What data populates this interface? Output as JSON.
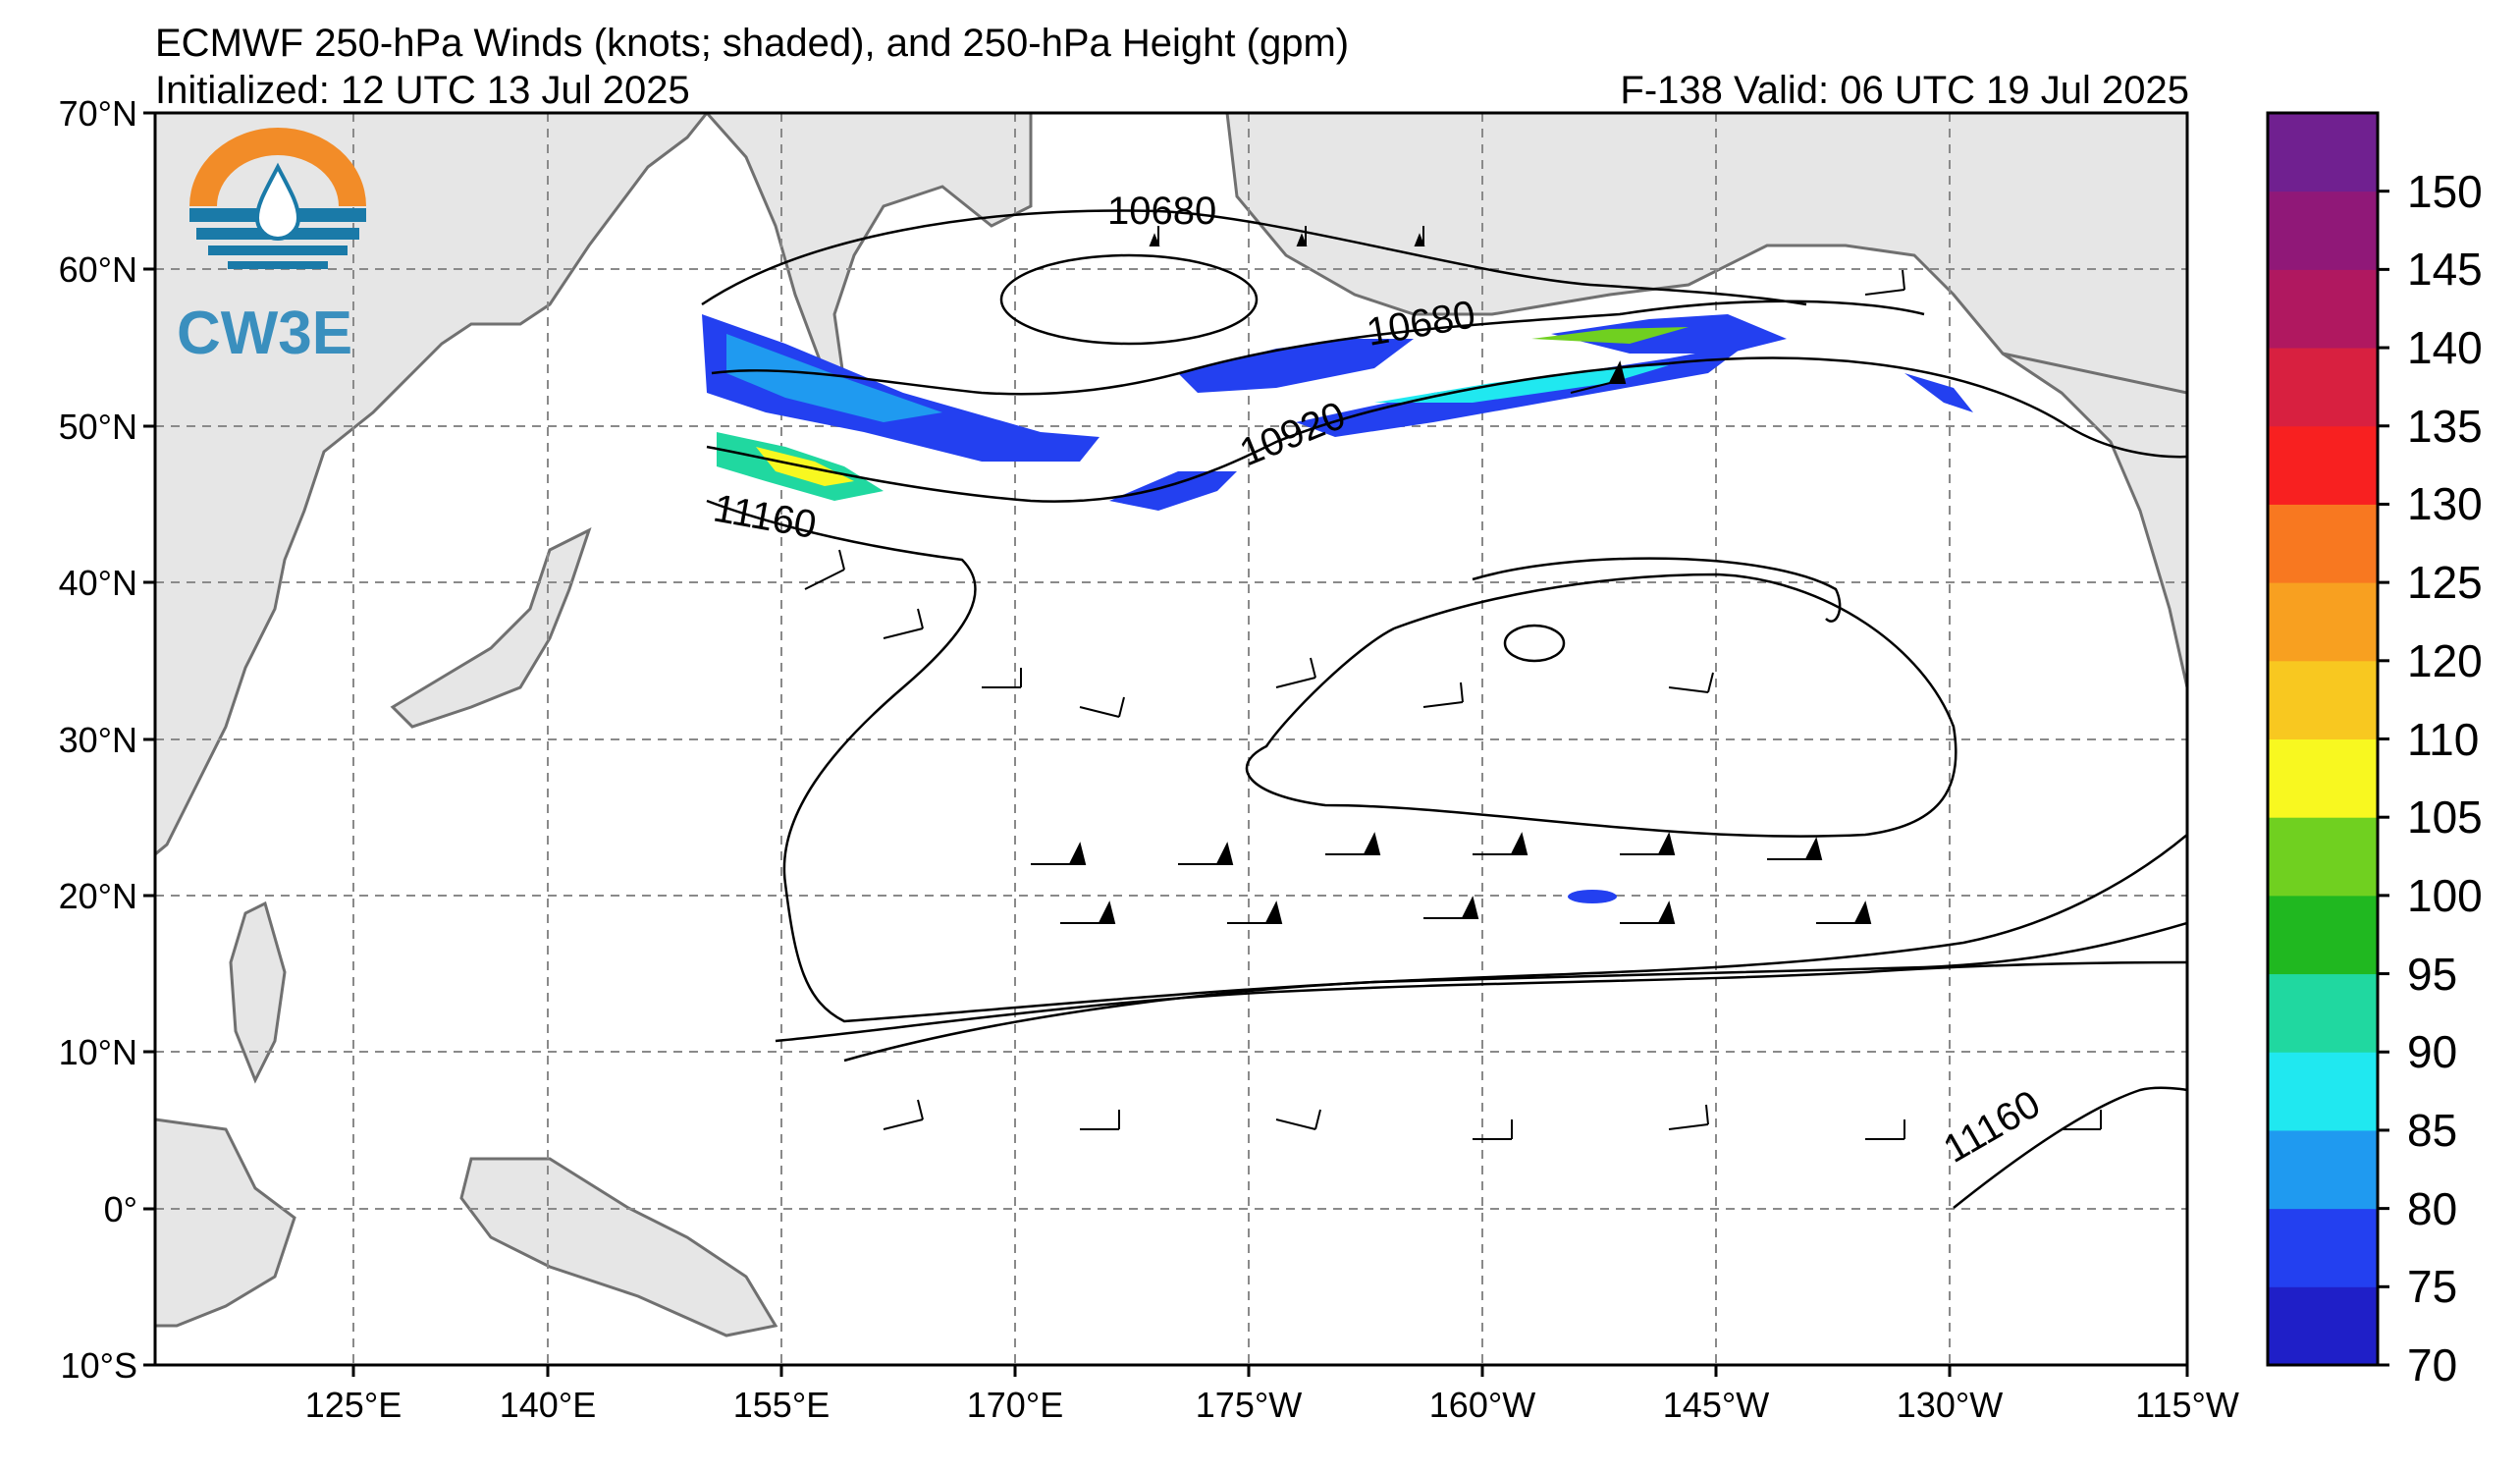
{
  "titles": {
    "line1": "ECMWF 250-hPa Winds (knots; shaded), and 250-hPa Height (gpm)",
    "initialized": "Initialized: 12 UTC 13 Jul 2025",
    "valid": "F-138  Valid: 06 UTC 19 Jul 2025"
  },
  "logo": {
    "text": "CW3E",
    "colors": {
      "sun": "#f28c28",
      "water": "#1a7aa8",
      "text": "#3a8fbe"
    }
  },
  "map": {
    "lon_range": [
      112,
      245
    ],
    "lat_range": [
      -10,
      70
    ],
    "lat_ticks": [
      "70°N",
      "60°N",
      "50°N",
      "40°N",
      "30°N",
      "20°N",
      "10°N",
      "0°",
      "10°S"
    ],
    "lon_ticks": [
      "125°E",
      "140°E",
      "155°E",
      "170°E",
      "175°W",
      "160°W",
      "145°W",
      "130°W",
      "115°W"
    ],
    "land_color": "#e6e6e6",
    "coast_color": "#707070",
    "grid_color": "#808080",
    "contour_labels": [
      "10680",
      "10680",
      "10920",
      "11160",
      "11160"
    ]
  },
  "colorbar": {
    "unit": "knots",
    "levels": [
      70,
      75,
      80,
      85,
      90,
      95,
      100,
      105,
      110,
      120,
      125,
      130,
      135,
      140,
      145,
      150
    ],
    "labels": [
      "70",
      "75",
      "80",
      "85",
      "90",
      "95",
      "100",
      "105",
      "110",
      "120",
      "125",
      "130",
      "135",
      "140",
      "145",
      "150"
    ],
    "colors": [
      "#1f1fc8",
      "#2340f0",
      "#1f9af0",
      "#20e8f0",
      "#20d8a0",
      "#20b820",
      "#70d020",
      "#f8f820",
      "#f8c820",
      "#f8a020",
      "#f87820",
      "#f82020",
      "#d82040",
      "#b01860",
      "#901878",
      "#702090"
    ]
  }
}
